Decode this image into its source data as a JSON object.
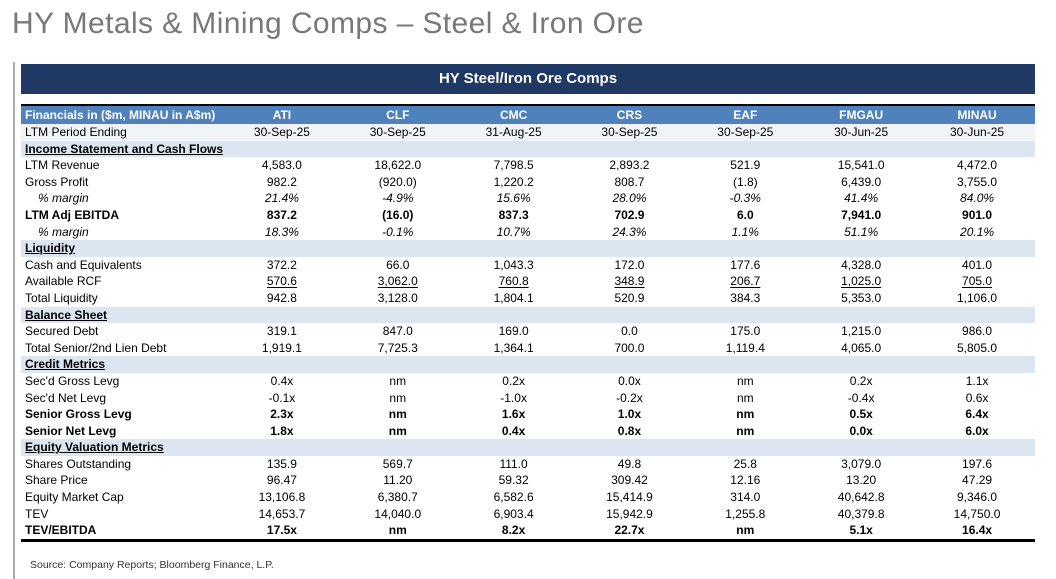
{
  "title": "HY Metals & Mining Comps – Steel & Iron Ore",
  "banner": "HY Steel/Iron Ore Comps",
  "source": "Source: Company Reports; Bloomberg Finance, L.P.",
  "colors": {
    "banner_bg": "#1f3864",
    "header_bg": "#4f81bd",
    "section_row_bg": "#dce6f1",
    "period_row_bg": "#f1f3f6",
    "title_text": "#77787b"
  },
  "table": {
    "header_label": "Financials in ($m, MINAU in A$m)",
    "columns": [
      "ATI",
      "CLF",
      "CMC",
      "CRS",
      "EAF",
      "FMGAU",
      "MINAU"
    ],
    "rows": [
      {
        "type": "period",
        "label": "LTM Period Ending",
        "values": [
          "30-Sep-25",
          "30-Sep-25",
          "31-Aug-25",
          "30-Sep-25",
          "30-Sep-25",
          "30-Jun-25",
          "30-Jun-25"
        ]
      },
      {
        "type": "section",
        "label": "Income Statement and Cash Flows"
      },
      {
        "type": "data",
        "label": "LTM Revenue",
        "values": [
          "4,583.0",
          "18,622.0",
          "7,798.5",
          "2,893.2",
          "521.9",
          "15,541.0",
          "4,472.0"
        ]
      },
      {
        "type": "data",
        "label": "Gross Profit",
        "values": [
          "982.2",
          "(920.0)",
          "1,220.2",
          "808.7",
          "(1.8)",
          "6,439.0",
          "3,755.0"
        ]
      },
      {
        "type": "margin",
        "label": "% margin",
        "values": [
          "21.4%",
          "-4.9%",
          "15.6%",
          "28.0%",
          "-0.3%",
          "41.4%",
          "84.0%"
        ]
      },
      {
        "type": "bold",
        "label": "LTM Adj EBITDA",
        "values": [
          "837.2",
          "(16.0)",
          "837.3",
          "702.9",
          "6.0",
          "7,941.0",
          "901.0"
        ]
      },
      {
        "type": "margin",
        "label": "% margin",
        "values": [
          "18.3%",
          "-0.1%",
          "10.7%",
          "24.3%",
          "1.1%",
          "51.1%",
          "20.1%"
        ]
      },
      {
        "type": "section",
        "label": "Liquidity"
      },
      {
        "type": "data",
        "label": "Cash and Equivalents",
        "values": [
          "372.2",
          "66.0",
          "1,043.3",
          "172.0",
          "177.6",
          "4,328.0",
          "401.0"
        ]
      },
      {
        "type": "u-vals",
        "label": "Available RCF",
        "values": [
          "570.6",
          "3,062.0",
          "760.8",
          "348.9",
          "206.7",
          "1,025.0",
          "705.0"
        ]
      },
      {
        "type": "data",
        "label": "Total Liquidity",
        "values": [
          "942.8",
          "3,128.0",
          "1,804.1",
          "520.9",
          "384.3",
          "5,353.0",
          "1,106.0"
        ]
      },
      {
        "type": "section",
        "label": "Balance Sheet"
      },
      {
        "type": "data",
        "label": "Secured Debt",
        "values": [
          "319.1",
          "847.0",
          "169.0",
          "0.0",
          "175.0",
          "1,215.0",
          "986.0"
        ]
      },
      {
        "type": "data",
        "label": "Total Senior/2nd Lien Debt",
        "values": [
          "1,919.1",
          "7,725.3",
          "1,364.1",
          "700.0",
          "1,119.4",
          "4,065.0",
          "5,805.0"
        ]
      },
      {
        "type": "section",
        "label": "Credit Metrics"
      },
      {
        "type": "data",
        "label": "Sec'd Gross Levg",
        "values": [
          "0.4x",
          "nm",
          "0.2x",
          "0.0x",
          "nm",
          "0.2x",
          "1.1x"
        ]
      },
      {
        "type": "data",
        "label": "Sec'd Net Levg",
        "values": [
          "-0.1x",
          "nm",
          "-1.0x",
          "-0.2x",
          "nm",
          "-0.4x",
          "0.6x"
        ]
      },
      {
        "type": "bold",
        "label": "Senior Gross Levg",
        "values": [
          "2.3x",
          "nm",
          "1.6x",
          "1.0x",
          "nm",
          "0.5x",
          "6.4x"
        ]
      },
      {
        "type": "bold",
        "label": "Senior Net Levg",
        "values": [
          "1.8x",
          "nm",
          "0.4x",
          "0.8x",
          "nm",
          "0.0x",
          "6.0x"
        ]
      },
      {
        "type": "section",
        "label": "Equity Valuation Metrics"
      },
      {
        "type": "data",
        "label": "Shares Outstanding",
        "values": [
          "135.9",
          "569.7",
          "111.0",
          "49.8",
          "25.8",
          "3,079.0",
          "197.6"
        ]
      },
      {
        "type": "data",
        "label": "Share Price",
        "values": [
          "96.47",
          "11.20",
          "59.32",
          "309.42",
          "12.16",
          "13.20",
          "47.29"
        ]
      },
      {
        "type": "data",
        "label": "Equity Market Cap",
        "values": [
          "13,106.8",
          "6,380.7",
          "6,582.6",
          "15,414.9",
          "314.0",
          "40,642.8",
          "9,346.0"
        ]
      },
      {
        "type": "data",
        "label": "TEV",
        "values": [
          "14,653.7",
          "14,040.0",
          "6,903.4",
          "15,942.9",
          "1,255.8",
          "40,379.8",
          "14,750.0"
        ]
      },
      {
        "type": "bold",
        "label": "TEV/EBITDA",
        "values": [
          "17.5x",
          "nm",
          "8.2x",
          "22.7x",
          "nm",
          "5.1x",
          "16.4x"
        ]
      }
    ]
  }
}
